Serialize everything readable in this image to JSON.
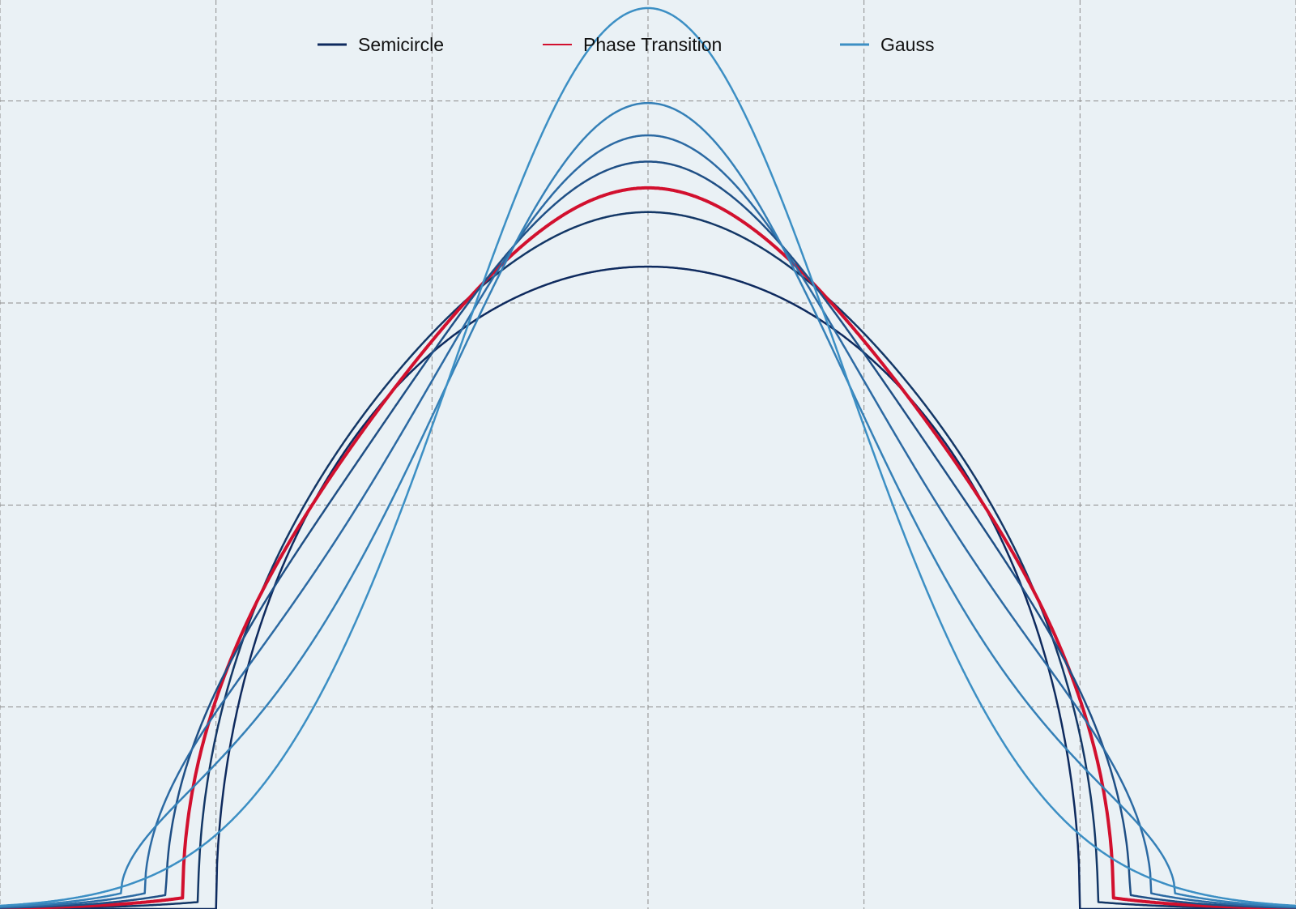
{
  "chart_data": {
    "type": "line",
    "title": "",
    "xlabel": "",
    "ylabel": "",
    "xlim": [
      -3,
      3
    ],
    "ylim": [
      0,
      0.45
    ],
    "grid": true,
    "legend_placement": "top-center",
    "legend": [
      {
        "label": "Semicircle",
        "color": "#0e2a5e"
      },
      {
        "label": "Phase Transition",
        "color": "#d2102e"
      },
      {
        "label": "Gauss",
        "color": "#3c8fc4"
      }
    ],
    "series": [
      {
        "family": "Semicircle",
        "shape": "semicircle",
        "radius": 2.0,
        "peak": 0.318,
        "color": "#0e2a5e",
        "width": 2.5
      },
      {
        "shape": "interp",
        "t": 0.15,
        "peak": 0.345,
        "color": "#133766",
        "width": 2.5
      },
      {
        "family": "Phase Transition",
        "shape": "interp",
        "t": 0.28,
        "peak": 0.357,
        "color": "#d2102e",
        "width": 4
      },
      {
        "shape": "interp",
        "t": 0.42,
        "peak": 0.37,
        "color": "#1f4f85",
        "width": 2.5
      },
      {
        "shape": "interp",
        "t": 0.6,
        "peak": 0.383,
        "color": "#2c6aa3",
        "width": 2.5
      },
      {
        "shape": "interp",
        "t": 0.8,
        "peak": 0.399,
        "color": "#3580b7",
        "width": 2.5
      },
      {
        "family": "Gauss",
        "shape": "gauss",
        "sigma": 0.895,
        "peak": 0.446,
        "color": "#3c8fc4",
        "width": 2.5
      }
    ]
  }
}
